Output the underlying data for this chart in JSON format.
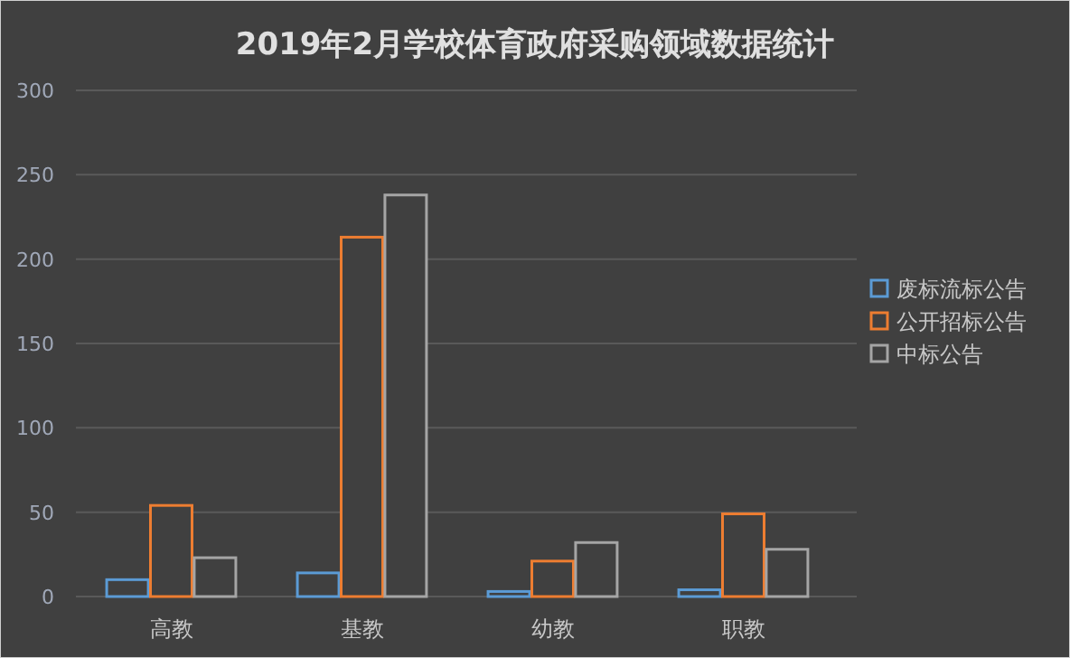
{
  "chart_data": {
    "type": "bar",
    "title": "2019年2月学校体育政府采购领域数据统计",
    "categories": [
      "高教",
      "基教",
      "幼教",
      "职教"
    ],
    "series": [
      {
        "name": "废标流标公告",
        "color": "#5b9bd5",
        "values": [
          10,
          14,
          3,
          4
        ]
      },
      {
        "name": "公开招标公告",
        "color": "#ed7d31",
        "values": [
          54,
          213,
          21,
          49
        ]
      },
      {
        "name": "中标公告",
        "color": "#a5a5a5",
        "values": [
          23,
          238,
          32,
          28
        ]
      }
    ],
    "ylim": [
      0,
      300
    ],
    "yticks": [
      0,
      50,
      100,
      150,
      200,
      250,
      300
    ],
    "grid": "y",
    "legend": "right"
  }
}
